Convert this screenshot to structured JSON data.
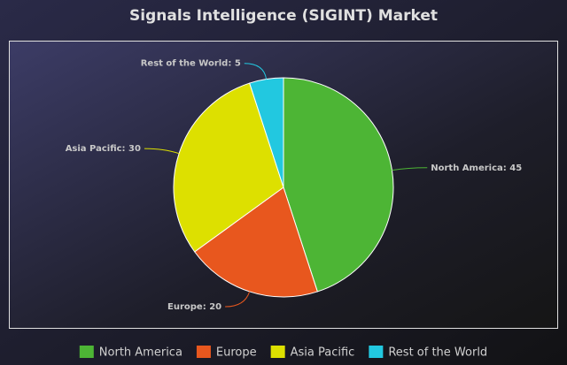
{
  "chart_data": {
    "type": "pie",
    "title": "Signals Intelligence (SIGINT) Market",
    "categories": [
      "North America",
      "Europe",
      "Asia Pacific",
      "Rest of the World"
    ],
    "values": [
      45,
      20,
      30,
      5
    ],
    "value_labels": [
      "North America: 45",
      "Europe: 20",
      "Asia Pacific: 30",
      "Rest of the World: 5"
    ],
    "colors": [
      "#4db535",
      "#e8571e",
      "#dde000",
      "#22c8e0"
    ],
    "legend": "bottom"
  }
}
